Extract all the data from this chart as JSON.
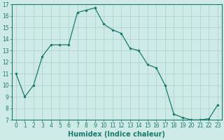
{
  "x": [
    0,
    1,
    2,
    3,
    4,
    5,
    6,
    7,
    8,
    9,
    10,
    11,
    12,
    13,
    14,
    15,
    16,
    17,
    18,
    19,
    20,
    21,
    22,
    23
  ],
  "y": [
    11,
    9,
    10,
    12.5,
    13.5,
    13.5,
    13.5,
    16.3,
    16.5,
    16.7,
    15.3,
    14.8,
    14.5,
    13.2,
    13.0,
    11.8,
    11.5,
    10.0,
    7.5,
    7.2,
    7.0,
    7.0,
    7.1,
    8.3
  ],
  "line_color": "#1a7a6e",
  "marker": "o",
  "marker_size": 2.0,
  "bg_color": "#ceeae6",
  "grid_color": "#aacfcb",
  "xlabel": "Humidex (Indice chaleur)",
  "xlim_min": -0.5,
  "xlim_max": 23.5,
  "ylim": [
    7,
    17
  ],
  "yticks": [
    7,
    8,
    9,
    10,
    11,
    12,
    13,
    14,
    15,
    16,
    17
  ],
  "xticks": [
    0,
    1,
    2,
    3,
    4,
    5,
    6,
    7,
    8,
    9,
    10,
    11,
    12,
    13,
    14,
    15,
    16,
    17,
    18,
    19,
    20,
    21,
    22,
    23
  ],
  "tick_color": "#1a7a6e",
  "label_color": "#1a7a6e",
  "xlabel_fontsize": 7,
  "tick_fontsize": 5.5,
  "linewidth": 0.9
}
